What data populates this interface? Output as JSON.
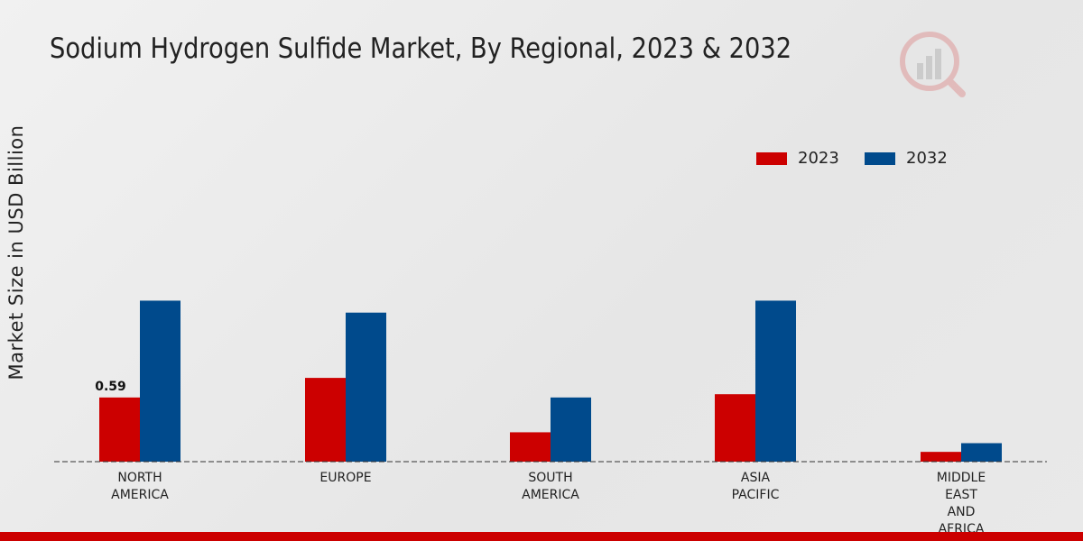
{
  "chart_data": {
    "type": "bar",
    "title": "Sodium Hydrogen Sulfide Market, By Regional, 2023 & 2032",
    "ylabel": "Market Size in USD Billion",
    "xlabel": "",
    "categories": [
      [
        "NORTH",
        "AMERICA"
      ],
      [
        "EUROPE"
      ],
      [
        "SOUTH",
        "AMERICA"
      ],
      [
        "ASIA",
        "PACIFIC"
      ],
      [
        "MIDDLE",
        "EAST",
        "AND",
        "AFRICA"
      ]
    ],
    "series": [
      {
        "name": "2023",
        "color": "#cc0000",
        "values": [
          0.59,
          0.77,
          0.27,
          0.62,
          0.09
        ]
      },
      {
        "name": "2032",
        "color": "#004a8c",
        "values": [
          1.48,
          1.37,
          0.59,
          1.48,
          0.17
        ]
      }
    ],
    "data_labels": [
      {
        "series": 0,
        "index": 0,
        "text": "0.59"
      }
    ],
    "ylim": [
      0,
      1.55
    ],
    "legend_position": "top-right",
    "grid": false
  }
}
